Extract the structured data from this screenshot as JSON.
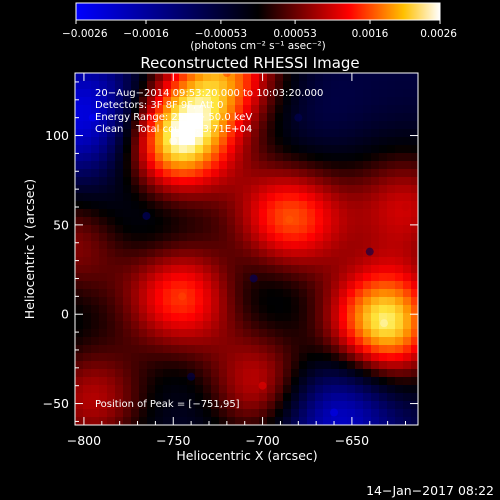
{
  "chart_data": {
    "type": "heatmap",
    "title": "Reconstructed RHESSI Image",
    "xlabel": "Heliocentric X (arcsec)",
    "ylabel": "Heliocentric Y (arcsec)",
    "xlim": [
      -805,
      -613
    ],
    "ylim": [
      -62,
      135
    ],
    "xticks": [
      -800,
      -750,
      -700,
      -650
    ],
    "xtick_labels": [
      "−800",
      "−750",
      "−700",
      "−650"
    ],
    "yticks": [
      -50,
      0,
      50,
      100
    ],
    "ytick_labels": [
      "−50",
      "0",
      "50",
      "100"
    ],
    "colorbar": {
      "range": [
        -0.0026,
        0.0026
      ],
      "ticks": [
        -0.0026,
        -0.0016,
        -0.00053,
        0.00053,
        0.0016,
        0.0026
      ],
      "tick_labels": [
        "−0.0026",
        "−0.0016",
        "−0.00053",
        "0.00053",
        "0.0016",
        "0.0026"
      ],
      "units_label": "(photons cm⁻² s⁻¹ asec⁻²)"
    },
    "annotations": [
      "20−Aug−2014 09:53:20.000 to 10:03:20.000",
      "Detectors: 3F 8F 9F, Att 0",
      "Energy Range: 25.0 − 50.0 keV",
      "Clean    Total counts: 3.71E+04"
    ],
    "peak_label": "Position of Peak = [−751,95]",
    "peaks": [
      {
        "x": -750,
        "y": 97,
        "value": 0.0026
      },
      {
        "x": -632,
        "y": -5,
        "value": 0.0025
      },
      {
        "x": -720,
        "y": 135,
        "value": 0.0016
      },
      {
        "x": -685,
        "y": 53,
        "value": 0.0017
      },
      {
        "x": -745,
        "y": 10,
        "value": 0.0016
      },
      {
        "x": -795,
        "y": -48,
        "value": 0.0009
      },
      {
        "x": -700,
        "y": -40,
        "value": 0.0012
      },
      {
        "x": -620,
        "y": 60,
        "value": 0.001
      },
      {
        "x": -805,
        "y": 40,
        "value": 0.0007
      },
      {
        "x": -795,
        "y": 110,
        "value": -0.0026
      },
      {
        "x": -660,
        "y": -55,
        "value": -0.0024
      },
      {
        "x": -765,
        "y": 55,
        "value": -0.0011
      },
      {
        "x": -705,
        "y": 20,
        "value": -0.001
      },
      {
        "x": -680,
        "y": 110,
        "value": -0.0009
      },
      {
        "x": -740,
        "y": -35,
        "value": -0.0008
      },
      {
        "x": -640,
        "y": 35,
        "value": -0.0008
      }
    ]
  },
  "footer": {
    "timestamp": "14−Jan−2017 08:22"
  }
}
